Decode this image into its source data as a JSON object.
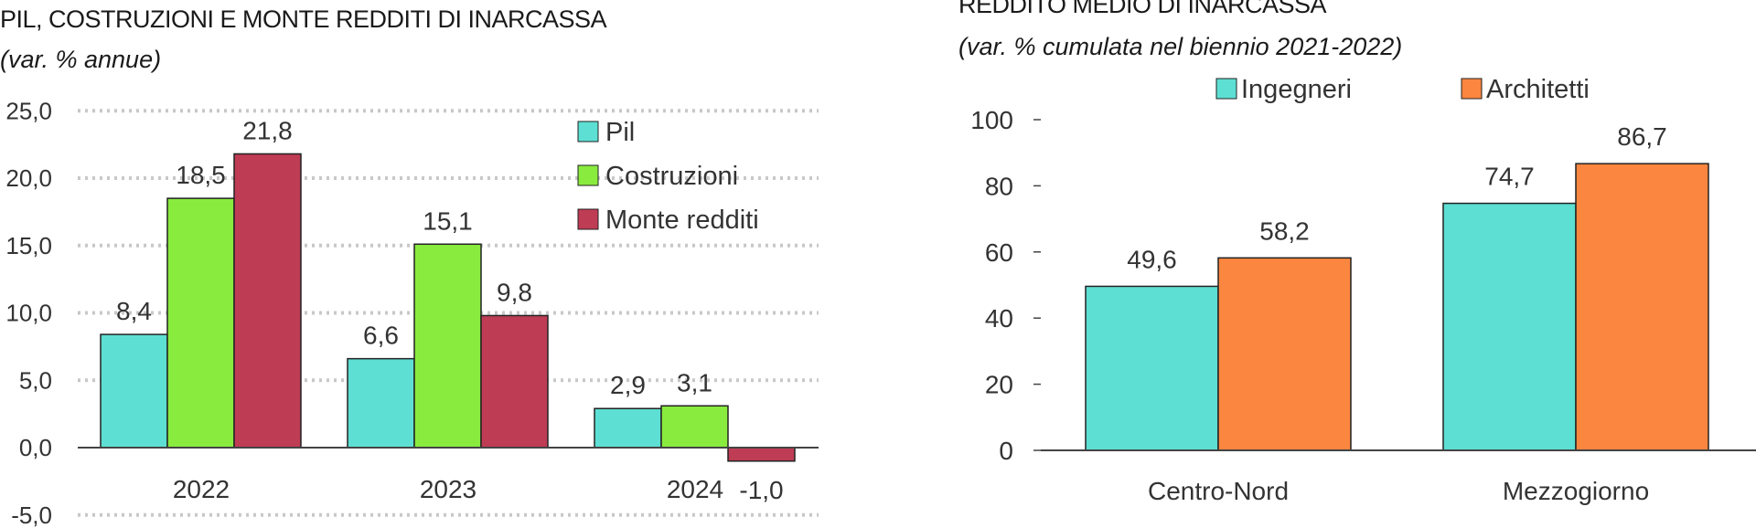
{
  "colors": {
    "pil": "#5ddfd3",
    "costruzioni": "#8aeb3f",
    "monte": "#bf3c55",
    "ingegneri": "#5ddfd3",
    "architetti": "#fb863f",
    "grid": "#c8c8c8",
    "axis": "#444444",
    "bar_stroke": "#222222"
  },
  "chart_data": [
    {
      "type": "bar",
      "title": "PIL, COSTRUZIONI E MONTE REDDITI DI INARCASSA",
      "subtitle": "(var. % annue)",
      "categories": [
        "2022",
        "2023",
        "2024"
      ],
      "series": [
        {
          "name": "Pil",
          "values": [
            8.4,
            6.6,
            2.9
          ],
          "labels": [
            "8,4",
            "6,6",
            "2,9"
          ]
        },
        {
          "name": "Costruzioni",
          "values": [
            18.5,
            15.1,
            3.1
          ],
          "labels": [
            "18,5",
            "15,1",
            "3,1"
          ]
        },
        {
          "name": "Monte redditi",
          "values": [
            21.8,
            9.8,
            -1.0
          ],
          "labels": [
            "21,8",
            "9,8",
            "-1,0"
          ]
        }
      ],
      "ylim": [
        -5,
        25
      ],
      "yticks": [
        25,
        20,
        15,
        10,
        5,
        0,
        -5
      ],
      "ytick_labels": [
        "25,0",
        "20,0",
        "15,0",
        "10,0",
        "5,0",
        "0,0",
        "-5,0"
      ],
      "grid": "dotted",
      "legend": "top-right"
    },
    {
      "type": "bar",
      "title": "REDDITO MEDIO DI INARCASSA",
      "subtitle": "(var. % cumulata nel biennio 2021-2022)",
      "categories": [
        "Centro-Nord",
        "Mezzogiorno"
      ],
      "series": [
        {
          "name": "Ingegneri",
          "values": [
            49.6,
            74.7
          ],
          "labels": [
            "49,6",
            "74,7"
          ]
        },
        {
          "name": "Architetti",
          "values": [
            58.2,
            86.7
          ],
          "labels": [
            "58,2",
            "86,7"
          ]
        }
      ],
      "ylim": [
        0,
        100
      ],
      "yticks": [
        100,
        80,
        60,
        40,
        20,
        0
      ],
      "ytick_labels": [
        "100",
        "80",
        "60",
        "40",
        "20",
        "0"
      ],
      "grid": "none",
      "legend": "top"
    }
  ]
}
